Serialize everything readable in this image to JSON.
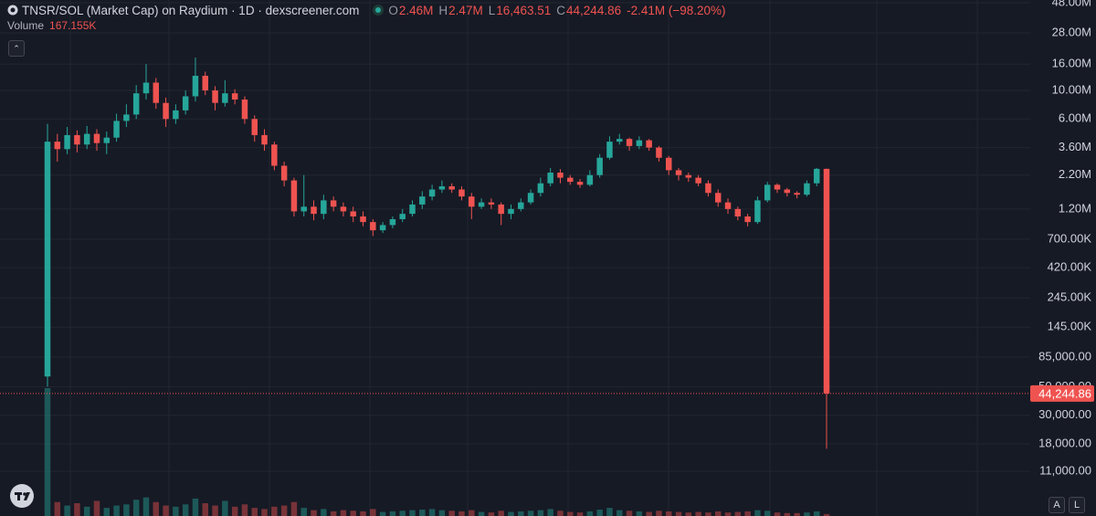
{
  "chart_data": {
    "type": "candlestick",
    "title": "TNSR/SOL (Market Cap) on Raydium · 1D · dexscreener.com",
    "ohlc": [
      {
        "key": "O",
        "label": "2.46M"
      },
      {
        "key": "H",
        "label": "2.47M"
      },
      {
        "key": "L",
        "label": "16,463.51"
      },
      {
        "key": "C",
        "label": "44,244.86"
      }
    ],
    "change": "-2.41M (−98.20%)",
    "volume_legend": {
      "name": "Volume",
      "label": "167.155K"
    },
    "scale_buttons": [
      "A",
      "L"
    ],
    "up_color": "#26a69a",
    "down_color": "#ef5350",
    "log_scale": true,
    "grid": true,
    "ylim": [
      4950,
      50400000
    ],
    "yticks": [
      {
        "value": 48000000,
        "label": "48.00M"
      },
      {
        "value": 28000000,
        "label": "28.00M"
      },
      {
        "value": 16000000,
        "label": "16.00M"
      },
      {
        "value": 10000000,
        "label": "10.00M"
      },
      {
        "value": 6000000,
        "label": "6.00M"
      },
      {
        "value": 3600000,
        "label": "3.60M"
      },
      {
        "value": 2200000,
        "label": "2.20M"
      },
      {
        "value": 1200000,
        "label": "1.20M"
      },
      {
        "value": 700000,
        "label": "700.00K"
      },
      {
        "value": 420000,
        "label": "420.00K"
      },
      {
        "value": 245000,
        "label": "245.00K"
      },
      {
        "value": 145000,
        "label": "145.00K"
      },
      {
        "value": 85000,
        "label": "85,000.00"
      },
      {
        "value": 50000,
        "label": "50,000.00"
      },
      {
        "value": 30000,
        "label": "30,000.00"
      },
      {
        "value": 18000,
        "label": "18,000.00"
      },
      {
        "value": 11000,
        "label": "11,000.00"
      }
    ],
    "open": [
      60000,
      4000000,
      3500000,
      4500000,
      3800000,
      4600000,
      3900000,
      4300000,
      5800000,
      6500000,
      9500000,
      11500000,
      8000000,
      6000000,
      7000000,
      9000000,
      13000000,
      10000000,
      8000000,
      9500000,
      8500000,
      6000000,
      4500000,
      3800000,
      2600000,
      2000000,
      1150000,
      1250000,
      1100000,
      1400000,
      1250000,
      1150000,
      1050000,
      950000,
      820000,
      900000,
      1000000,
      1100000,
      1300000,
      1500000,
      1700000,
      1800000,
      1700000,
      1500000,
      1250000,
      1350000,
      1300000,
      1100000,
      1200000,
      1350000,
      1600000,
      1900000,
      2300000,
      2100000,
      1950000,
      1850000,
      2200000,
      3000000,
      4000000,
      4200000,
      3700000,
      4100000,
      3600000,
      3000000,
      2400000,
      2200000,
      2100000,
      1900000,
      1600000,
      1350000,
      1200000,
      1050000,
      950000,
      1400000,
      1850000,
      1700000,
      1600000,
      1550000,
      1900000,
      2460000
    ],
    "high": [
      5500000,
      4600000,
      5200000,
      4900000,
      5300000,
      5000000,
      4800000,
      6600000,
      7800000,
      11000000,
      16000000,
      12500000,
      8800000,
      7800000,
      10000000,
      18000000,
      14000000,
      10800000,
      12000000,
      10200000,
      9000000,
      6400000,
      5000000,
      4000000,
      2800000,
      2100000,
      2200000,
      1400000,
      1550000,
      1500000,
      1350000,
      1250000,
      1150000,
      1000000,
      950000,
      1050000,
      1200000,
      1400000,
      1650000,
      1850000,
      2000000,
      1900000,
      1800000,
      1600000,
      1450000,
      1450000,
      1350000,
      1300000,
      1450000,
      1700000,
      2100000,
      2500000,
      2450000,
      2200000,
      2050000,
      2400000,
      3200000,
      4400000,
      4600000,
      4300000,
      4400000,
      4200000,
      3700000,
      3100000,
      2500000,
      2300000,
      2200000,
      2000000,
      1700000,
      1450000,
      1250000,
      1100000,
      1500000,
      1950000,
      1900000,
      1750000,
      1650000,
      2000000,
      2500000,
      2470000
    ],
    "low": [
      50000,
      2800000,
      3200000,
      3300000,
      3500000,
      3400000,
      3200000,
      4000000,
      5200000,
      6000000,
      8500000,
      7200000,
      5200000,
      5500000,
      6500000,
      8200000,
      9200000,
      7000000,
      7500000,
      7800000,
      5500000,
      4000000,
      3400000,
      2400000,
      1800000,
      1050000,
      1050000,
      980000,
      1000000,
      1150000,
      1050000,
      950000,
      880000,
      740000,
      780000,
      850000,
      950000,
      1050000,
      1200000,
      1400000,
      1600000,
      1600000,
      1400000,
      1000000,
      1200000,
      1200000,
      900000,
      1000000,
      1150000,
      1300000,
      1500000,
      1800000,
      1900000,
      1850000,
      1750000,
      1800000,
      2100000,
      2900000,
      3800000,
      3400000,
      3500000,
      3400000,
      2800000,
      2200000,
      2000000,
      1950000,
      1800000,
      1500000,
      1250000,
      1100000,
      980000,
      880000,
      920000,
      1350000,
      1600000,
      1500000,
      1450000,
      1500000,
      1800000,
      16463.51
    ],
    "close": [
      4000000,
      3500000,
      4500000,
      3800000,
      4600000,
      3900000,
      4300000,
      5800000,
      6500000,
      9500000,
      11500000,
      8000000,
      6000000,
      7000000,
      9000000,
      13000000,
      10000000,
      8000000,
      9500000,
      8500000,
      6000000,
      4500000,
      3800000,
      2600000,
      2000000,
      1150000,
      1250000,
      1100000,
      1400000,
      1250000,
      1150000,
      1050000,
      950000,
      820000,
      900000,
      1000000,
      1100000,
      1300000,
      1500000,
      1700000,
      1800000,
      1700000,
      1500000,
      1250000,
      1350000,
      1300000,
      1100000,
      1200000,
      1350000,
      1600000,
      1900000,
      2300000,
      2100000,
      1950000,
      1850000,
      2200000,
      3000000,
      4000000,
      4200000,
      3700000,
      4100000,
      3600000,
      3000000,
      2400000,
      2200000,
      2100000,
      1900000,
      1600000,
      1350000,
      1200000,
      1050000,
      950000,
      1400000,
      1850000,
      1700000,
      1600000,
      1550000,
      1900000,
      2460000,
      44244.86
    ],
    "volume": [
      11000000,
      1200000,
      900000,
      1100000,
      800000,
      1300000,
      700000,
      900000,
      1000000,
      1400000,
      1600000,
      1200000,
      900000,
      800000,
      1000000,
      1500000,
      1100000,
      900000,
      1300000,
      800000,
      1000000,
      700000,
      600000,
      800000,
      900000,
      1200000,
      700000,
      500000,
      600000,
      400000,
      500000,
      450000,
      400000,
      600000,
      350000,
      400000,
      450000,
      500000,
      550000,
      600000,
      500000,
      450000,
      400000,
      500000,
      350000,
      300000,
      450000,
      350000,
      400000,
      450000,
      500000,
      600000,
      450000,
      350000,
      300000,
      400000,
      550000,
      700000,
      500000,
      450000,
      400000,
      350000,
      450000,
      400000,
      350000,
      300000,
      350000,
      300000,
      400000,
      300000,
      350000,
      400000,
      500000,
      450000,
      300000,
      250000,
      250000,
      300000,
      400000,
      167155
    ]
  }
}
